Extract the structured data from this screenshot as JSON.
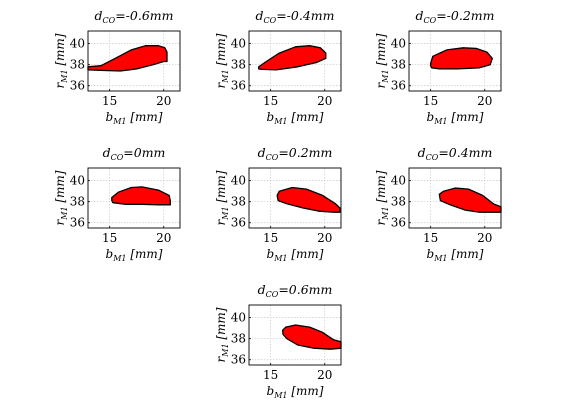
{
  "chart_data": [
    {
      "type": "area",
      "title": {
        "prefix": "d",
        "sub": "CO",
        "suffix": "=-0.6mm"
      },
      "xlabel": {
        "prefix": "b",
        "sub": "M1",
        "suffix": " [mm]"
      },
      "ylabel": {
        "prefix": "r",
        "sub": "M1",
        "suffix": " [mm]"
      },
      "xlim": [
        13,
        21.5
      ],
      "ylim": [
        35.5,
        41.2
      ],
      "xticks": [
        15,
        20
      ],
      "yticks": [
        36,
        38,
        40
      ],
      "grid": true,
      "fill_color": "#ff0000",
      "upper": [
        [
          13,
          37.8
        ],
        [
          14.2,
          37.9
        ],
        [
          15.5,
          38.6
        ],
        [
          17,
          39.4
        ],
        [
          18.3,
          39.8
        ],
        [
          19.5,
          39.8
        ],
        [
          20.1,
          39.6
        ],
        [
          20.3,
          39.2
        ]
      ],
      "lower": [
        [
          20.3,
          38.3
        ],
        [
          20.0,
          38.3
        ],
        [
          19,
          38.0
        ],
        [
          17.5,
          37.6
        ],
        [
          16,
          37.4
        ],
        [
          14.5,
          37.45
        ],
        [
          13,
          37.5
        ]
      ]
    },
    {
      "type": "area",
      "title": {
        "prefix": "d",
        "sub": "CO",
        "suffix": "=-0.4mm"
      },
      "xlabel": {
        "prefix": "b",
        "sub": "M1",
        "suffix": " [mm]"
      },
      "ylabel": {
        "prefix": "r",
        "sub": "M1",
        "suffix": " [mm]"
      },
      "xlim": [
        13,
        21.5
      ],
      "ylim": [
        35.5,
        41.2
      ],
      "xticks": [
        15,
        20
      ],
      "yticks": [
        36,
        38,
        40
      ],
      "grid": true,
      "fill_color": "#ff0000",
      "upper": [
        [
          13.9,
          37.8
        ],
        [
          14.6,
          38.3
        ],
        [
          15.8,
          39.1
        ],
        [
          17.3,
          39.7
        ],
        [
          18.6,
          39.8
        ],
        [
          19.6,
          39.6
        ],
        [
          20.1,
          39.1
        ]
      ],
      "lower": [
        [
          20.1,
          38.6
        ],
        [
          19.2,
          38.2
        ],
        [
          17.5,
          37.8
        ],
        [
          15.5,
          37.5
        ],
        [
          14.2,
          37.55
        ],
        [
          13.9,
          37.6
        ]
      ]
    },
    {
      "type": "area",
      "title": {
        "prefix": "d",
        "sub": "CO",
        "suffix": "=-0.2mm"
      },
      "xlabel": {
        "prefix": "b",
        "sub": "M1",
        "suffix": " [mm]"
      },
      "ylabel": {
        "prefix": "r",
        "sub": "M1",
        "suffix": " [mm]"
      },
      "xlim": [
        13,
        21.5
      ],
      "ylim": [
        35.5,
        41.2
      ],
      "xticks": [
        15,
        20
      ],
      "yticks": [
        36,
        38,
        40
      ],
      "grid": true,
      "fill_color": "#ff0000",
      "upper": [
        [
          15,
          38.1
        ],
        [
          15.2,
          38.8
        ],
        [
          16.5,
          39.4
        ],
        [
          18,
          39.6
        ],
        [
          19.2,
          39.55
        ],
        [
          20.2,
          39.2
        ],
        [
          20.7,
          38.6
        ]
      ],
      "lower": [
        [
          20.5,
          38.0
        ],
        [
          19.5,
          37.7
        ],
        [
          17.5,
          37.6
        ],
        [
          15.8,
          37.6
        ],
        [
          15.1,
          37.7
        ],
        [
          15,
          37.9
        ]
      ]
    },
    {
      "type": "area",
      "title": {
        "prefix": "d",
        "sub": "CO",
        "suffix": "=0mm"
      },
      "xlabel": {
        "prefix": "b",
        "sub": "M1",
        "suffix": " [mm]"
      },
      "ylabel": {
        "prefix": "r",
        "sub": "M1",
        "suffix": " [mm]"
      },
      "xlim": [
        13,
        21.5
      ],
      "ylim": [
        35.5,
        41.2
      ],
      "xticks": [
        15,
        20
      ],
      "yticks": [
        36,
        38,
        40
      ],
      "grid": true,
      "fill_color": "#ff0000",
      "upper": [
        [
          15.2,
          38.4
        ],
        [
          15.8,
          38.9
        ],
        [
          17,
          39.35
        ],
        [
          18,
          39.4
        ],
        [
          19.5,
          39.1
        ],
        [
          20.5,
          38.6
        ],
        [
          20.6,
          38.1
        ]
      ],
      "lower": [
        [
          20.6,
          37.7
        ],
        [
          19.5,
          37.7
        ],
        [
          18,
          37.75
        ],
        [
          16.5,
          37.75
        ],
        [
          15.3,
          37.9
        ],
        [
          15.2,
          38.1
        ]
      ]
    },
    {
      "type": "area",
      "title": {
        "prefix": "d",
        "sub": "CO",
        "suffix": "=0.2mm"
      },
      "xlabel": {
        "prefix": "b",
        "sub": "M1",
        "suffix": " [mm]"
      },
      "ylabel": {
        "prefix": "r",
        "sub": "M1",
        "suffix": " [mm]"
      },
      "xlim": [
        13,
        21.5
      ],
      "ylim": [
        35.5,
        41.2
      ],
      "xticks": [
        15,
        20
      ],
      "yticks": [
        36,
        38,
        40
      ],
      "grid": true,
      "fill_color": "#ff0000",
      "upper": [
        [
          15.6,
          38.6
        ],
        [
          15.8,
          39.0
        ],
        [
          17,
          39.35
        ],
        [
          18.3,
          39.2
        ],
        [
          19.8,
          38.6
        ],
        [
          21,
          37.8
        ],
        [
          21.4,
          37.4
        ]
      ],
      "lower": [
        [
          21.4,
          37.0
        ],
        [
          20.8,
          37.0
        ],
        [
          19.5,
          37.1
        ],
        [
          18,
          37.4
        ],
        [
          16.5,
          37.8
        ],
        [
          15.7,
          38.1
        ]
      ]
    },
    {
      "type": "area",
      "title": {
        "prefix": "d",
        "sub": "CO",
        "suffix": "=0.4mm"
      },
      "xlabel": {
        "prefix": "b",
        "sub": "M1",
        "suffix": " [mm]"
      },
      "ylabel": {
        "prefix": "r",
        "sub": "M1",
        "suffix": " [mm]"
      },
      "xlim": [
        13,
        21.5
      ],
      "ylim": [
        35.5,
        41.2
      ],
      "xticks": [
        15,
        20
      ],
      "yticks": [
        36,
        38,
        40
      ],
      "grid": true,
      "fill_color": "#ff0000",
      "upper": [
        [
          15.8,
          38.7
        ],
        [
          16.2,
          39.0
        ],
        [
          17.3,
          39.3
        ],
        [
          18.5,
          39.2
        ],
        [
          19.8,
          38.6
        ],
        [
          20.8,
          37.8
        ],
        [
          21.5,
          37.5
        ]
      ],
      "lower": [
        [
          21.5,
          37.0
        ],
        [
          20.8,
          37.0
        ],
        [
          19.5,
          37.0
        ],
        [
          18.2,
          37.2
        ],
        [
          16.8,
          37.7
        ],
        [
          15.9,
          38.1
        ]
      ]
    },
    {
      "type": "area",
      "title": {
        "prefix": "d",
        "sub": "CO",
        "suffix": "=0.6mm"
      },
      "xlabel": {
        "prefix": "b",
        "sub": "M1",
        "suffix": " [mm]"
      },
      "ylabel": {
        "prefix": "r",
        "sub": "M1",
        "suffix": " [mm]"
      },
      "xlim": [
        13,
        21.5
      ],
      "ylim": [
        35.5,
        41.2
      ],
      "xticks": [
        15,
        20
      ],
      "yticks": [
        36,
        38,
        40
      ],
      "grid": true,
      "fill_color": "#ff0000",
      "upper": [
        [
          16.1,
          38.8
        ],
        [
          16.4,
          39.1
        ],
        [
          17.3,
          39.3
        ],
        [
          18.6,
          39.1
        ],
        [
          19.8,
          38.6
        ],
        [
          20.8,
          37.9
        ],
        [
          21.5,
          37.7
        ]
      ],
      "lower": [
        [
          21.5,
          37.1
        ],
        [
          20.5,
          37.0
        ],
        [
          19.0,
          37.1
        ],
        [
          17.5,
          37.4
        ],
        [
          16.5,
          38.0
        ],
        [
          16.15,
          38.4
        ]
      ]
    }
  ]
}
